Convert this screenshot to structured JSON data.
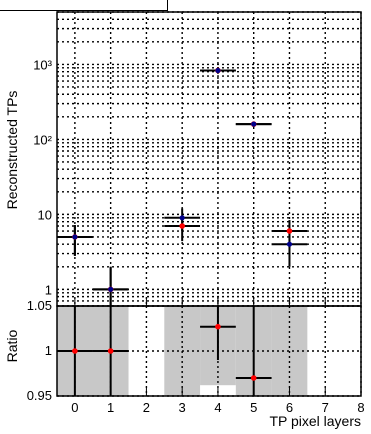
{
  "chart_data": [
    {
      "type": "scatter",
      "panel": "main",
      "xlabel": "",
      "ylabel": "Reconstructed TPs",
      "yscale": "log",
      "xlim": [
        -0.5,
        8
      ],
      "ylim": [
        0.6,
        5000
      ],
      "grid": true,
      "y_tick_labels": [
        "1",
        "10",
        "10³",
        "10²"
      ],
      "series": [
        {
          "color": "#ff0000",
          "points": [
            {
              "x": 0,
              "y": 5,
              "yerr": 2.2
            },
            {
              "x": 1,
              "y": 1,
              "yerr": 1
            },
            {
              "x": 3,
              "y": 7,
              "yerr": 2.6
            },
            {
              "x": 4,
              "y": 830,
              "yerr": 29
            },
            {
              "x": 5,
              "y": 160,
              "yerr": 12.6
            },
            {
              "x": 6,
              "y": 6,
              "yerr": 2.4
            }
          ]
        },
        {
          "color": "#00008b",
          "points": [
            {
              "x": 0,
              "y": 5,
              "yerr": 2.2
            },
            {
              "x": 1,
              "y": 1,
              "yerr": 1
            },
            {
              "x": 3,
              "y": 9,
              "yerr": 3
            },
            {
              "x": 4,
              "y": 830,
              "yerr": 29
            },
            {
              "x": 5,
              "y": 160,
              "yerr": 12.6
            },
            {
              "x": 6,
              "y": 4,
              "yerr": 2
            }
          ]
        }
      ]
    },
    {
      "type": "scatter",
      "panel": "ratio",
      "xlabel": "TP pixel layers",
      "ylabel": "Ratio",
      "xlim": [
        -0.5,
        8
      ],
      "ylim": [
        0.95,
        1.05
      ],
      "grid": true,
      "x_tick_labels": [
        "0",
        "1",
        "2",
        "3",
        "4",
        "5",
        "6",
        "7",
        "8"
      ],
      "y_tick_labels": [
        "0.95",
        "1",
        "1.05"
      ],
      "bands": [
        {
          "x0": -0.5,
          "x1": 1.5,
          "y0": 0.95,
          "y1": 1.05
        },
        {
          "x0": 2.5,
          "x1": 3.5,
          "y0": 0.95,
          "y1": 1.05
        },
        {
          "x0": 3.5,
          "x1": 4.5,
          "y0": 0.962,
          "y1": 1.05
        },
        {
          "x0": 4.5,
          "x1": 5.5,
          "y0": 0.95,
          "y1": 1.05
        },
        {
          "x0": 5.5,
          "x1": 6.5,
          "y0": 0.95,
          "y1": 1.05
        }
      ],
      "points": [
        {
          "x": 0,
          "y": 1.0,
          "ylo": 0.95,
          "yhi": 1.05
        },
        {
          "x": 1,
          "y": 1.0,
          "ylo": 0.95,
          "yhi": 1.05
        },
        {
          "x": 4,
          "y": 1.027,
          "ylo": 0.99,
          "yhi": 1.05
        },
        {
          "x": 5,
          "y": 0.97,
          "ylo": 0.95,
          "yhi": 1.05
        }
      ],
      "point_color": "#ff0000"
    }
  ]
}
